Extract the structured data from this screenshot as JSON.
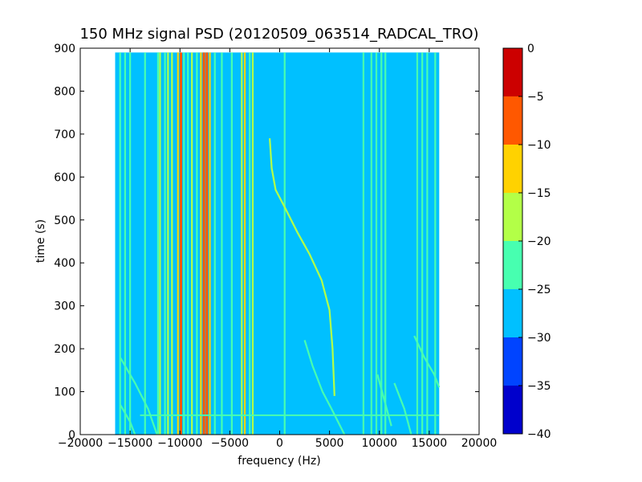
{
  "chart_data": {
    "type": "heatmap",
    "title": "150 MHz signal PSD (20120509_063514_RADCAL_TRO)",
    "xlabel": "frequency (Hz)",
    "ylabel": "time (s)",
    "xlim": [
      -20000,
      20000
    ],
    "ylim": [
      0,
      900
    ],
    "xticks": [
      -20000,
      -15000,
      -10000,
      -5000,
      0,
      5000,
      10000,
      15000,
      20000
    ],
    "xtick_labels": [
      "−20000",
      "−15000",
      "−10000",
      "−5000",
      "0",
      "5000",
      "10000",
      "15000",
      "20000"
    ],
    "yticks": [
      0,
      100,
      200,
      300,
      400,
      500,
      600,
      700,
      800,
      900
    ],
    "ytick_labels": [
      "0",
      "100",
      "200",
      "300",
      "400",
      "500",
      "600",
      "700",
      "800",
      "900"
    ],
    "data_extent": {
      "freq": [
        -16500,
        16000
      ],
      "time": [
        0,
        890
      ]
    },
    "background_level": -27,
    "colorbar": {
      "levels": [
        -40,
        -35,
        -30,
        -25,
        -20,
        -15,
        -10,
        -5,
        0
      ],
      "tick_labels": [
        "−40",
        "−35",
        "−30",
        "−25",
        "−20",
        "−15",
        "−10",
        "−5",
        "0"
      ],
      "colors": [
        "#0000cc",
        "#0044ff",
        "#00c0ff",
        "#47ffb0",
        "#b3ff47",
        "#ffd200",
        "#ff5800",
        "#cc0000"
      ]
    },
    "vertical_lines": [
      {
        "freq": -16000,
        "level": -23
      },
      {
        "freq": -15500,
        "level": -23
      },
      {
        "freq": -15000,
        "level": -22
      },
      {
        "freq": -13500,
        "level": -23
      },
      {
        "freq": -12200,
        "level": -22
      },
      {
        "freq": -12000,
        "level": -18
      },
      {
        "freq": -11500,
        "level": -23
      },
      {
        "freq": -11200,
        "level": -16
      },
      {
        "freq": -10800,
        "level": -20
      },
      {
        "freq": -10200,
        "level": -13
      },
      {
        "freq": -9900,
        "level": -7
      },
      {
        "freq": -9600,
        "level": -22
      },
      {
        "freq": -9200,
        "level": -22
      },
      {
        "freq": -8800,
        "level": -18
      },
      {
        "freq": -8300,
        "level": -22
      },
      {
        "freq": -7900,
        "level": -13
      },
      {
        "freq": -7600,
        "level": -8
      },
      {
        "freq": -7300,
        "level": -7
      },
      {
        "freq": -7000,
        "level": -13
      },
      {
        "freq": -6500,
        "level": -22
      },
      {
        "freq": -5800,
        "level": -23
      },
      {
        "freq": -4800,
        "level": -22
      },
      {
        "freq": -3800,
        "level": -17
      },
      {
        "freq": -3500,
        "level": -12
      },
      {
        "freq": -3000,
        "level": -22
      },
      {
        "freq": -2700,
        "level": -17
      },
      {
        "freq": 500,
        "level": -23
      },
      {
        "freq": 8400,
        "level": -22
      },
      {
        "freq": 9200,
        "level": -23
      },
      {
        "freq": 9700,
        "level": -22
      },
      {
        "freq": 10200,
        "level": -23
      },
      {
        "freq": 10600,
        "level": -22
      },
      {
        "freq": 13800,
        "level": -23
      },
      {
        "freq": 14300,
        "level": -22
      },
      {
        "freq": 14800,
        "level": -23
      },
      {
        "freq": 15600,
        "level": -23
      }
    ],
    "drift_tracks": [
      {
        "level": -20,
        "points": [
          [
            -1000,
            690
          ],
          [
            -800,
            620
          ],
          [
            -400,
            570
          ],
          [
            500,
            530
          ],
          [
            1800,
            470
          ],
          [
            3000,
            420
          ],
          [
            4200,
            360
          ],
          [
            5000,
            290
          ],
          [
            5300,
            200
          ],
          [
            5500,
            90
          ]
        ]
      },
      {
        "level": -22,
        "points": [
          [
            2500,
            220
          ],
          [
            3300,
            160
          ],
          [
            4300,
            100
          ],
          [
            5200,
            60
          ],
          [
            6500,
            0
          ]
        ]
      },
      {
        "level": -22,
        "points": [
          [
            -16000,
            180
          ],
          [
            -14500,
            120
          ],
          [
            -13200,
            60
          ],
          [
            -12300,
            0
          ]
        ]
      },
      {
        "level": -22,
        "points": [
          [
            -16000,
            70
          ],
          [
            -15000,
            30
          ],
          [
            -14500,
            0
          ]
        ]
      },
      {
        "level": -22,
        "points": [
          [
            13500,
            230
          ],
          [
            14500,
            180
          ],
          [
            15500,
            140
          ],
          [
            16000,
            110
          ]
        ]
      },
      {
        "level": -23,
        "points": [
          [
            11500,
            120
          ],
          [
            12500,
            60
          ],
          [
            13200,
            0
          ]
        ]
      },
      {
        "level": -23,
        "points": [
          [
            9800,
            140
          ],
          [
            10500,
            80
          ],
          [
            11200,
            20
          ]
        ]
      }
    ],
    "horizontal_lines": [
      {
        "time": 45,
        "freq_range": [
          -14000,
          16000
        ],
        "level": -23
      }
    ]
  }
}
